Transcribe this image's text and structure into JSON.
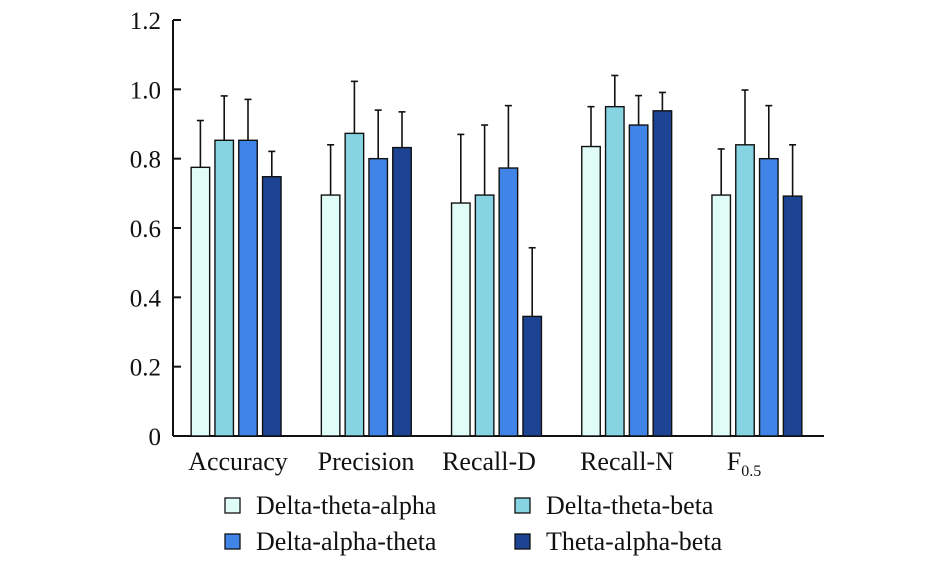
{
  "chart_data": {
    "type": "bar",
    "title": "",
    "xlabel": "",
    "ylabel": "",
    "ylim": [
      0,
      1.2
    ],
    "yticks": [
      "0",
      "0.2",
      "0.4",
      "0.6",
      "0.8",
      "1.0",
      "1.2"
    ],
    "grid": false,
    "legend_position": "bottom",
    "categories": [
      {
        "label": "Accuracy",
        "sub": ""
      },
      {
        "label": "Precision",
        "sub": ""
      },
      {
        "label": "Recall-D",
        "sub": ""
      },
      {
        "label": "Recall-N",
        "sub": ""
      },
      {
        "label": "F",
        "sub": "0.5"
      }
    ],
    "series": [
      {
        "name": "Delta-theta-alpha",
        "color": "#e0fcf6",
        "values": [
          0.775,
          0.695,
          0.672,
          0.835,
          0.695
        ],
        "errors": [
          0.135,
          0.145,
          0.198,
          0.115,
          0.133
        ]
      },
      {
        "name": "Delta-theta-beta",
        "color": "#86d4e2",
        "values": [
          0.853,
          0.873,
          0.695,
          0.95,
          0.84
        ],
        "errors": [
          0.128,
          0.15,
          0.202,
          0.09,
          0.158
        ]
      },
      {
        "name": "Delta-alpha-theta",
        "color": "#3f84e6",
        "values": [
          0.853,
          0.8,
          0.773,
          0.897,
          0.8
        ],
        "errors": [
          0.118,
          0.14,
          0.18,
          0.085,
          0.153
        ]
      },
      {
        "name": "Theta-alpha-beta",
        "color": "#1d4492",
        "values": [
          0.748,
          0.832,
          0.345,
          0.938,
          0.692
        ],
        "errors": [
          0.073,
          0.103,
          0.198,
          0.053,
          0.148
        ]
      }
    ]
  }
}
